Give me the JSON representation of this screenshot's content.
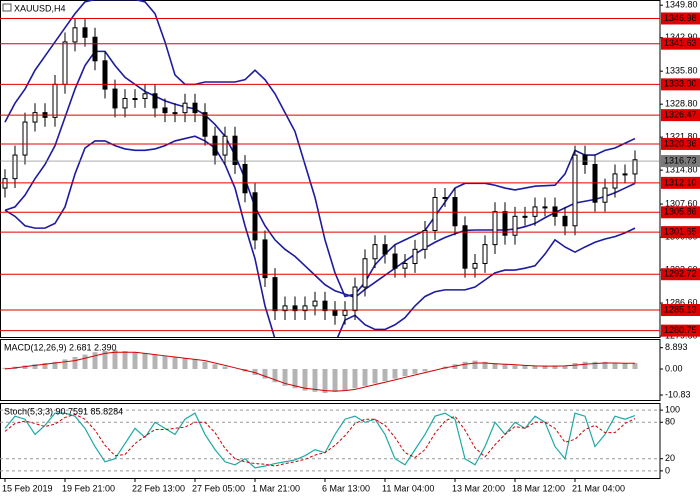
{
  "chart_data": [
    {
      "type": "candlestick",
      "title": "XAUUSD,H4",
      "categories": [
        "15 Feb 2019",
        null,
        null,
        null,
        null,
        null,
        "19 Feb 21:00",
        null,
        null,
        null,
        null,
        null,
        null,
        "22 Feb 13:00",
        null,
        null,
        null,
        null,
        null,
        "27 Feb 05:00",
        null,
        null,
        null,
        null,
        null,
        "1 Mar 21:00",
        null,
        null,
        null,
        null,
        null,
        null,
        "6 Mar 13:00",
        null,
        null,
        null,
        null,
        null,
        "11 Mar 04:00",
        null,
        null,
        null,
        null,
        null,
        null,
        "13 Mar 20:00",
        null,
        null,
        null,
        null,
        null,
        "18 Mar 12:00",
        null,
        null,
        null,
        null,
        null,
        "21 Mar 04:00",
        null,
        null,
        null,
        null,
        null,
        null
      ],
      "open": [
        1311,
        1313,
        1318,
        1325,
        1327,
        1326,
        1333,
        1342,
        1345,
        1343,
        1338,
        1332,
        1328,
        1330,
        1330,
        1331,
        1328,
        1327,
        1327,
        1329,
        1327,
        1322,
        1318,
        1322,
        1316,
        1310,
        1300,
        1292,
        1285,
        1286,
        1285,
        1286,
        1287,
        1285,
        1284,
        1285,
        1290,
        1296,
        1299,
        1297,
        1294,
        1295,
        1298,
        1302,
        1309,
        1309,
        1303,
        1294,
        1295,
        1299,
        1306,
        1301,
        1305,
        1305,
        1307,
        1307,
        1305,
        1303,
        1318,
        1316,
        1308,
        1311,
        1314,
        1314
      ],
      "high": [
        1315,
        1320,
        1327,
        1329,
        1329,
        1335,
        1344,
        1347,
        1347,
        1345,
        1340,
        1334,
        1332,
        1332,
        1333,
        1333,
        1330,
        1329,
        1331,
        1331,
        1329,
        1324,
        1324,
        1324,
        1318,
        1312,
        1302,
        1294,
        1288,
        1288,
        1288,
        1289,
        1289,
        1287,
        1287,
        1292,
        1298,
        1301,
        1301,
        1299,
        1297,
        1300,
        1304,
        1311,
        1311,
        1311,
        1305,
        1297,
        1301,
        1308,
        1308,
        1307,
        1307,
        1309,
        1309,
        1309,
        1307,
        1320,
        1320,
        1318,
        1313,
        1316,
        1316,
        1319
      ],
      "low": [
        1309,
        1311,
        1316,
        1323,
        1324,
        1324,
        1331,
        1340,
        1341,
        1336,
        1330,
        1326,
        1326,
        1328,
        1328,
        1326,
        1325,
        1325,
        1325,
        1325,
        1320,
        1316,
        1316,
        1314,
        1308,
        1298,
        1290,
        1283,
        1283,
        1283,
        1283,
        1284,
        1283,
        1282,
        1282,
        1283,
        1288,
        1294,
        1295,
        1292,
        1292,
        1293,
        1296,
        1300,
        1307,
        1301,
        1292,
        1292,
        1293,
        1297,
        1299,
        1299,
        1303,
        1303,
        1305,
        1303,
        1301,
        1301,
        1314,
        1306,
        1306,
        1309,
        1312,
        1312
      ],
      "close": [
        1313,
        1318,
        1325,
        1327,
        1326,
        1333,
        1342,
        1345,
        1343,
        1338,
        1332,
        1328,
        1330,
        1330,
        1331,
        1328,
        1327,
        1327,
        1329,
        1327,
        1322,
        1318,
        1322,
        1316,
        1310,
        1300,
        1292,
        1285,
        1286,
        1285,
        1286,
        1287,
        1285,
        1284,
        1285,
        1290,
        1296,
        1299,
        1297,
        1294,
        1295,
        1298,
        1302,
        1309,
        1309,
        1303,
        1294,
        1295,
        1299,
        1306,
        1301,
        1305,
        1305,
        1307,
        1307,
        1305,
        1303,
        1318,
        1316,
        1308,
        1311,
        1314,
        1314,
        1317
      ],
      "candle_color": "#000000",
      "bands": {
        "color": "#1c1ca0",
        "upper": [
          1325,
          1329,
          1332,
          1336,
          1339,
          1342,
          1345,
          1348,
          1350.5,
          1351,
          1351,
          1351,
          1351,
          1351,
          1350.5,
          1348,
          1342,
          1335,
          1333,
          1333,
          1333.5,
          1333.5,
          1333.5,
          1333.5,
          1334,
          1336,
          1334,
          1331,
          1327,
          1323,
          1316,
          1309,
          1300,
          1293,
          1288,
          1288.5,
          1291,
          1294.7,
          1297,
          1299,
          1300,
          1301,
          1302,
          1305,
          1308,
          1311,
          1312,
          1312,
          1312,
          1311.6,
          1311,
          1310.6,
          1311,
          1311.4,
          1311.5,
          1311.6,
          1314,
          1319,
          1318,
          1318,
          1319,
          1319.5,
          1320.5,
          1321.5
        ],
        "middle": [
          1306.3,
          1307,
          1309.5,
          1313,
          1316,
          1320,
          1326,
          1332,
          1337,
          1340,
          1340,
          1337,
          1334.5,
          1333,
          1331.5,
          1330.5,
          1329.5,
          1328.8,
          1328.2,
          1327.8,
          1326.5,
          1324.5,
          1322,
          1318,
          1313,
          1307,
          1303,
          1300,
          1298,
          1296.5,
          1294.5,
          1292.5,
          1290.5,
          1289.2,
          1288.5,
          1287.8,
          1289.5,
          1291,
          1292.5,
          1294,
          1295.5,
          1297,
          1298.3,
          1299.5,
          1300.5,
          1301.3,
          1302,
          1302.1,
          1302.1,
          1302.1,
          1302.1,
          1302.3,
          1302.8,
          1303.5,
          1304.7,
          1305.8,
          1306.8,
          1307.8,
          1308.2,
          1308.6,
          1309.2,
          1310,
          1311,
          1312
        ],
        "lower": [
          1306.3,
          1305,
          1303,
          1302.5,
          1302.5,
          1303.5,
          1307,
          1314,
          1319.5,
          1321,
          1321,
          1320,
          1319.3,
          1319,
          1319,
          1319.3,
          1320,
          1321,
          1321.5,
          1322,
          1321,
          1319.5,
          1316,
          1311,
          1303,
          1296,
          1286,
          1279,
          1275,
          1273,
          1272,
          1273,
          1275,
          1278,
          1283,
          1284,
          1282,
          1281,
          1281,
          1282,
          1283.5,
          1286,
          1288,
          1289,
          1289.4,
          1289.4,
          1289.4,
          1290,
          1291.5,
          1293,
          1293.6,
          1293.6,
          1294,
          1294.5,
          1297,
          1300,
          1298.5,
          1297.4,
          1298.5,
          1299.5,
          1300.2,
          1300.7,
          1301.5,
          1302.5
        ]
      },
      "levels": {
        "color": "#e00000",
        "values": [
          1346.98,
          1341.63,
          1333,
          1326.47,
          1320.36,
          1312.1,
          1305.86,
          1301.65,
          1292.72,
          1285.13,
          1280.75
        ],
        "value_labels": [
          "1346.98",
          "1341.63",
          "1333.00",
          "1326.47",
          "1320.36",
          "1312.10",
          "1305.86",
          "1301.65",
          "1292.72",
          "1285.13",
          "1280.75"
        ]
      },
      "last_price": 1316.73,
      "last_price_color": "#7a7a7a",
      "ylim": [
        1279.4,
        1350.9
      ],
      "yticks": [
        {
          "value": 1349.8,
          "label": "1349.80"
        },
        {
          "value": 1342.9,
          "label": "1342.90"
        },
        {
          "value": 1335.8,
          "label": "1335.80"
        },
        {
          "value": 1328.8,
          "label": "1328.80"
        },
        {
          "value": 1321.8,
          "label": "1321.80"
        },
        {
          "value": 1314.8,
          "label": "1314.80"
        },
        {
          "value": 1307.6,
          "label": "1307.60"
        },
        {
          "value": 1300.6,
          "label": "1300.60"
        },
        {
          "value": 1293.6,
          "label": "1293.60"
        },
        {
          "value": 1286.6,
          "label": "1286.60"
        },
        {
          "value": 1279.6,
          "label": "1279.60"
        }
      ]
    },
    {
      "type": "macd",
      "title": "MACD(12,26,9) 2.681 2.390",
      "histogram": {
        "color": "#b4b4b4",
        "values": [
          0.5,
          1,
          1.5,
          2,
          2.5,
          3,
          4,
          5,
          6,
          7,
          7.5,
          8,
          7.5,
          7,
          6.5,
          6,
          5.5,
          5,
          4.5,
          4,
          3,
          2,
          1,
          0,
          -1,
          -2.5,
          -4,
          -5.5,
          -7,
          -8,
          -9,
          -9.5,
          -10,
          -9.5,
          -9,
          -8,
          -7,
          -6,
          -5,
          -4,
          -3,
          -2,
          -1,
          0,
          1,
          2,
          3,
          3.5,
          3,
          2.5,
          2,
          1.5,
          1.5,
          1.5,
          1.5,
          1.5,
          1.5,
          2.5,
          3,
          3,
          3,
          2.5,
          2.5,
          2.5
        ]
      },
      "signal": {
        "color": "#d00000",
        "values": [
          0,
          0.5,
          1,
          1.5,
          2,
          2.5,
          3,
          3.5,
          4.5,
          5.5,
          6.5,
          7,
          7,
          7,
          6.5,
          6,
          5.5,
          5,
          4.5,
          4,
          3.5,
          2.5,
          1.5,
          0.5,
          -0.5,
          -1.5,
          -3,
          -4.5,
          -6,
          -7,
          -8,
          -8.5,
          -9,
          -9.2,
          -9,
          -8.5,
          -7.5,
          -6.5,
          -5.5,
          -4.5,
          -3.5,
          -2.5,
          -1.5,
          -0.5,
          0.5,
          1.2,
          2,
          2.5,
          2.5,
          2.2,
          2,
          1.8,
          1.5,
          1.3,
          1.2,
          1.2,
          1.3,
          1.6,
          2,
          2.3,
          2.5,
          2.5,
          2.4,
          2.4
        ]
      },
      "ylim": [
        -12.9,
        12.5
      ],
      "yticks": [
        8.893,
        {
          "value": 0,
          "label": "0.00"
        },
        -10.83
      ]
    },
    {
      "type": "stochastic",
      "title": "Stoch(5,3,3) 90.7591 85.8284",
      "main": {
        "color": "#20a8a8",
        "values": [
          70,
          90,
          85,
          60,
          75,
          95,
          95,
          90,
          70,
          40,
          15,
          20,
          45,
          70,
          55,
          80,
          70,
          60,
          85,
          95,
          60,
          35,
          15,
          10,
          20,
          5,
          8,
          12,
          15,
          18,
          25,
          35,
          30,
          60,
          85,
          90,
          80,
          85,
          60,
          20,
          10,
          35,
          60,
          90,
          95,
          85,
          20,
          10,
          40,
          80,
          60,
          80,
          70,
          90,
          80,
          40,
          20,
          95,
          90,
          40,
          60,
          90,
          85,
          91
        ]
      },
      "signal": {
        "color": "#d00000",
        "dashed": true,
        "values": [
          65,
          78,
          82,
          78,
          73,
          77,
          88,
          93,
          85,
          67,
          42,
          25,
          27,
          45,
          57,
          68,
          68,
          70,
          72,
          80,
          80,
          63,
          37,
          20,
          15,
          12,
          11,
          8,
          12,
          15,
          19,
          26,
          30,
          42,
          58,
          78,
          85,
          85,
          75,
          55,
          30,
          22,
          35,
          62,
          82,
          90,
          67,
          38,
          23,
          43,
          60,
          73,
          70,
          80,
          80,
          70,
          47,
          52,
          68,
          75,
          63,
          63,
          78,
          86
        ]
      },
      "ylim": [
        -11.7,
        111.7
      ],
      "yticks": [
        100,
        80,
        20,
        0
      ]
    }
  ]
}
